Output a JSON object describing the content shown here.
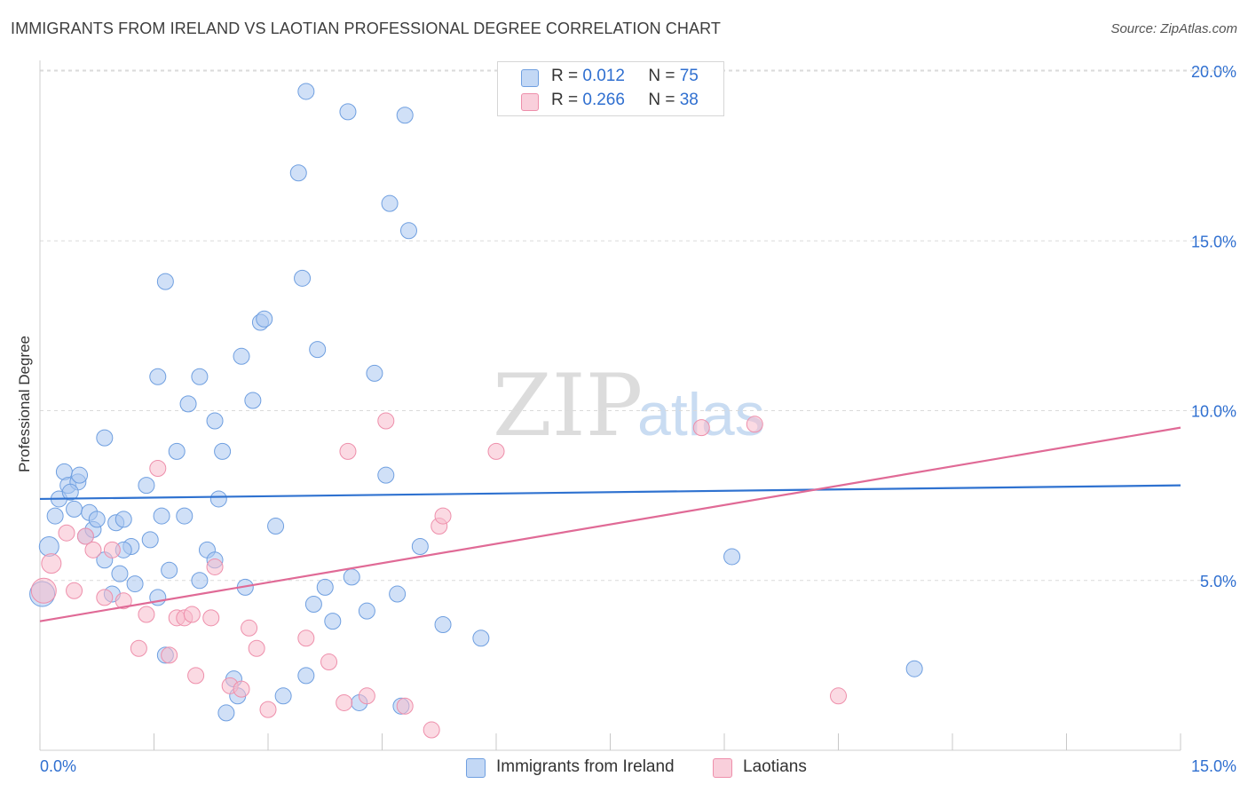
{
  "title": "IMMIGRANTS FROM IRELAND VS LAOTIAN PROFESSIONAL DEGREE CORRELATION CHART",
  "source": "Source: ZipAtlas.com",
  "watermark": {
    "zip": "ZIP",
    "atlas": "atlas"
  },
  "legend_stats": [
    {
      "r_label": "R =",
      "r_value": "0.012",
      "n_label": "N =",
      "n_value": "75",
      "color": "#a9c6f0",
      "border": "#6f9fe0"
    },
    {
      "r_label": "R =",
      "r_value": "0.266",
      "n_label": "N =",
      "n_value": "38",
      "color": "#f7bccc",
      "border": "#ee8fab"
    }
  ],
  "chart_data": {
    "type": "scatter",
    "title": "IMMIGRANTS FROM IRELAND VS LAOTIAN PROFESSIONAL DEGREE CORRELATION CHART",
    "xlabel": "",
    "ylabel": "Professional Degree",
    "xlim": [
      0,
      15
    ],
    "ylim": [
      0,
      20
    ],
    "x_tick_labels": [
      "0.0%",
      "15.0%"
    ],
    "y_ticks": [
      5,
      10,
      15,
      20
    ],
    "y_tick_labels": [
      "5.0%",
      "10.0%",
      "15.0%",
      "20.0%"
    ],
    "grid": true,
    "legend_placement": "bottom",
    "series": [
      {
        "name": "Immigrants from Ireland",
        "color": "#a9c6f0",
        "stroke": "#6f9fe0",
        "line_color": "#2f72d0",
        "trend": {
          "x": [
            0,
            15
          ],
          "y": [
            7.4,
            7.8
          ]
        },
        "points": [
          [
            0.03,
            4.6
          ],
          [
            0.12,
            6.0
          ],
          [
            0.2,
            6.9
          ],
          [
            0.25,
            7.4
          ],
          [
            0.32,
            8.2
          ],
          [
            0.37,
            7.8
          ],
          [
            0.45,
            7.1
          ],
          [
            0.5,
            7.9
          ],
          [
            0.52,
            8.1
          ],
          [
            0.6,
            6.3
          ],
          [
            0.65,
            7.0
          ],
          [
            0.7,
            6.5
          ],
          [
            0.75,
            6.8
          ],
          [
            0.85,
            5.6
          ],
          [
            0.95,
            4.6
          ],
          [
            1.0,
            6.7
          ],
          [
            1.05,
            5.2
          ],
          [
            1.1,
            6.8
          ],
          [
            1.2,
            6.0
          ],
          [
            1.25,
            4.9
          ],
          [
            1.4,
            7.8
          ],
          [
            1.45,
            6.2
          ],
          [
            1.55,
            4.5
          ],
          [
            1.6,
            6.9
          ],
          [
            1.65,
            2.8
          ],
          [
            1.7,
            5.3
          ],
          [
            1.8,
            8.8
          ],
          [
            1.9,
            6.9
          ],
          [
            1.95,
            10.2
          ],
          [
            2.1,
            5.0
          ],
          [
            2.2,
            5.9
          ],
          [
            2.3,
            5.6
          ],
          [
            2.35,
            7.4
          ],
          [
            2.4,
            8.8
          ],
          [
            2.45,
            1.1
          ],
          [
            2.55,
            2.1
          ],
          [
            2.6,
            1.6
          ],
          [
            2.7,
            4.8
          ],
          [
            2.8,
            10.3
          ],
          [
            2.9,
            12.6
          ],
          [
            2.95,
            12.7
          ],
          [
            3.1,
            6.6
          ],
          [
            3.2,
            1.6
          ],
          [
            3.5,
            2.2
          ],
          [
            3.6,
            4.3
          ],
          [
            3.65,
            11.8
          ],
          [
            3.75,
            4.8
          ],
          [
            3.85,
            3.8
          ],
          [
            4.1,
            5.1
          ],
          [
            4.2,
            1.4
          ],
          [
            4.3,
            4.1
          ],
          [
            4.4,
            11.1
          ],
          [
            4.55,
            8.1
          ],
          [
            4.6,
            16.1
          ],
          [
            4.75,
            1.3
          ],
          [
            4.8,
            18.7
          ],
          [
            4.85,
            15.3
          ],
          [
            5.0,
            6.0
          ],
          [
            5.3,
            3.7
          ],
          [
            5.8,
            3.3
          ],
          [
            1.55,
            11.0
          ],
          [
            1.65,
            13.8
          ],
          [
            2.1,
            11.0
          ],
          [
            2.3,
            9.7
          ],
          [
            2.65,
            11.6
          ],
          [
            3.45,
            13.9
          ],
          [
            3.4,
            17.0
          ],
          [
            3.5,
            19.4
          ],
          [
            4.05,
            18.8
          ],
          [
            4.7,
            4.6
          ],
          [
            0.85,
            9.2
          ],
          [
            9.1,
            5.7
          ],
          [
            11.5,
            2.4
          ],
          [
            0.4,
            7.6
          ],
          [
            1.1,
            5.9
          ]
        ],
        "sizes": {
          "0": 14,
          "1": 11
        }
      },
      {
        "name": "Laotians",
        "color": "#f7bccc",
        "stroke": "#ee8fab",
        "line_color": "#e06a96",
        "trend": {
          "x": [
            0,
            15
          ],
          "y": [
            3.8,
            9.5
          ]
        },
        "points": [
          [
            0.05,
            4.7
          ],
          [
            0.15,
            5.5
          ],
          [
            0.35,
            6.4
          ],
          [
            0.45,
            4.7
          ],
          [
            0.6,
            6.3
          ],
          [
            0.7,
            5.9
          ],
          [
            0.85,
            4.5
          ],
          [
            0.95,
            5.9
          ],
          [
            1.1,
            4.4
          ],
          [
            1.3,
            3.0
          ],
          [
            1.4,
            4.0
          ],
          [
            1.55,
            8.3
          ],
          [
            1.7,
            2.8
          ],
          [
            1.8,
            3.9
          ],
          [
            1.9,
            3.9
          ],
          [
            2.0,
            4.0
          ],
          [
            2.05,
            2.2
          ],
          [
            2.25,
            3.9
          ],
          [
            2.3,
            5.4
          ],
          [
            2.5,
            1.9
          ],
          [
            2.65,
            1.8
          ],
          [
            2.75,
            3.6
          ],
          [
            2.85,
            3.0
          ],
          [
            3.0,
            1.2
          ],
          [
            3.5,
            3.3
          ],
          [
            3.8,
            2.6
          ],
          [
            4.0,
            1.4
          ],
          [
            4.05,
            8.8
          ],
          [
            4.3,
            1.6
          ],
          [
            4.55,
            9.7
          ],
          [
            4.8,
            1.3
          ],
          [
            5.15,
            0.6
          ],
          [
            5.25,
            6.6
          ],
          [
            5.3,
            6.9
          ],
          [
            6.0,
            8.8
          ],
          [
            8.7,
            9.5
          ],
          [
            9.4,
            9.6
          ],
          [
            10.5,
            1.6
          ]
        ],
        "sizes": {
          "0": 14,
          "1": 11
        }
      }
    ]
  },
  "legend_bottom": [
    {
      "label": "Immigrants from Ireland",
      "color": "#a9c6f0",
      "border": "#6f9fe0"
    },
    {
      "label": "Laotians",
      "color": "#f7bccc",
      "border": "#ee8fab"
    }
  ]
}
